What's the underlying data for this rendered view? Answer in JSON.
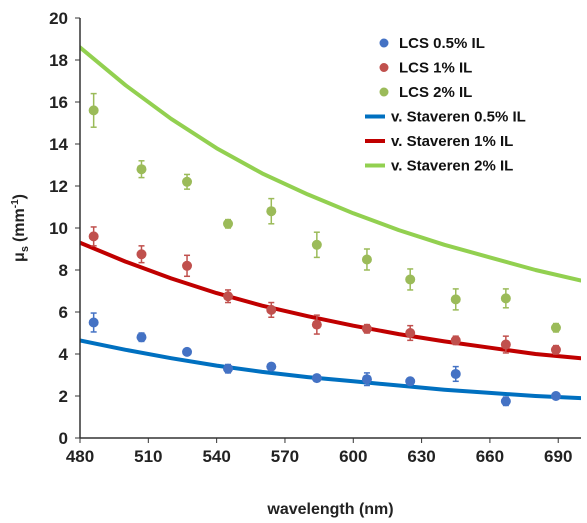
{
  "chart_data": {
    "type": "scatter",
    "xlabel": "wavelength (nm)",
    "ylabel_main": "μ",
    "ylabel_sub": "s",
    "ylabel_unit": "(mm",
    "ylabel_exp": "-1",
    "ylabel_close": ")",
    "xlim": [
      480,
      700
    ],
    "ylim": [
      0,
      20
    ],
    "x_ticks": [
      "480",
      "510",
      "540",
      "570",
      "600",
      "630",
      "660",
      "690"
    ],
    "y_ticks": [
      "0",
      "2",
      "4",
      "6",
      "8",
      "10",
      "12",
      "14",
      "16",
      "18",
      "20"
    ],
    "grid": false,
    "legend_position": "top-right",
    "series": [
      {
        "name": "LCS 0.5% IL",
        "kind": "points",
        "color": "#4472c4",
        "points": [
          {
            "x": 486,
            "y": 5.5,
            "err": 0.45
          },
          {
            "x": 507,
            "y": 4.8,
            "err": 0.2
          },
          {
            "x": 527,
            "y": 4.1,
            "err": 0.15
          },
          {
            "x": 545,
            "y": 3.3,
            "err": 0.2
          },
          {
            "x": 564,
            "y": 3.4,
            "err": 0.15
          },
          {
            "x": 584,
            "y": 2.85,
            "err": 0.15
          },
          {
            "x": 606,
            "y": 2.8,
            "err": 0.3
          },
          {
            "x": 625,
            "y": 2.7,
            "err": 0.15
          },
          {
            "x": 645,
            "y": 3.05,
            "err": 0.35
          },
          {
            "x": 667,
            "y": 1.75,
            "err": 0.2
          },
          {
            "x": 689,
            "y": 2.0,
            "err": 0.1
          }
        ]
      },
      {
        "name": "LCS 1% IL",
        "kind": "points",
        "color": "#c0504d",
        "points": [
          {
            "x": 486,
            "y": 9.6,
            "err": 0.45
          },
          {
            "x": 507,
            "y": 8.75,
            "err": 0.4
          },
          {
            "x": 527,
            "y": 8.2,
            "err": 0.5
          },
          {
            "x": 545,
            "y": 6.75,
            "err": 0.3
          },
          {
            "x": 564,
            "y": 6.1,
            "err": 0.35
          },
          {
            "x": 584,
            "y": 5.4,
            "err": 0.45
          },
          {
            "x": 606,
            "y": 5.2,
            "err": 0.2
          },
          {
            "x": 625,
            "y": 5.0,
            "err": 0.35
          },
          {
            "x": 645,
            "y": 4.65,
            "err": 0.2
          },
          {
            "x": 667,
            "y": 4.45,
            "err": 0.4
          },
          {
            "x": 689,
            "y": 4.2,
            "err": 0.2
          }
        ]
      },
      {
        "name": "LCS 2% IL",
        "kind": "points",
        "color": "#9bbb59",
        "points": [
          {
            "x": 486,
            "y": 15.6,
            "err": 0.8
          },
          {
            "x": 507,
            "y": 12.8,
            "err": 0.4
          },
          {
            "x": 527,
            "y": 12.2,
            "err": 0.35
          },
          {
            "x": 545,
            "y": 10.2,
            "err": 0.2
          },
          {
            "x": 564,
            "y": 10.8,
            "err": 0.6
          },
          {
            "x": 584,
            "y": 9.2,
            "err": 0.6
          },
          {
            "x": 606,
            "y": 8.5,
            "err": 0.5
          },
          {
            "x": 625,
            "y": 7.55,
            "err": 0.5
          },
          {
            "x": 645,
            "y": 6.6,
            "err": 0.5
          },
          {
            "x": 667,
            "y": 6.65,
            "err": 0.45
          },
          {
            "x": 689,
            "y": 5.25,
            "err": 0.2
          }
        ]
      },
      {
        "name": "v. Staveren 0.5% IL",
        "kind": "line",
        "color": "#0070c0",
        "x": [
          480,
          500,
          520,
          540,
          560,
          580,
          600,
          620,
          640,
          660,
          680,
          700
        ],
        "y": [
          4.65,
          4.2,
          3.8,
          3.45,
          3.15,
          2.9,
          2.7,
          2.5,
          2.3,
          2.15,
          2.0,
          1.9
        ]
      },
      {
        "name": "v. Staveren 1% IL",
        "kind": "line",
        "color": "#c00000",
        "x": [
          480,
          500,
          520,
          540,
          560,
          580,
          600,
          620,
          640,
          660,
          680,
          700
        ],
        "y": [
          9.3,
          8.4,
          7.6,
          6.9,
          6.3,
          5.8,
          5.35,
          4.95,
          4.6,
          4.3,
          4.0,
          3.8
        ]
      },
      {
        "name": "v. Staveren 2% IL",
        "kind": "line",
        "color": "#92d050",
        "x": [
          480,
          500,
          520,
          540,
          560,
          580,
          600,
          620,
          640,
          660,
          680,
          700
        ],
        "y": [
          18.6,
          16.8,
          15.2,
          13.8,
          12.6,
          11.6,
          10.7,
          9.9,
          9.2,
          8.6,
          8.0,
          7.5
        ]
      }
    ]
  }
}
